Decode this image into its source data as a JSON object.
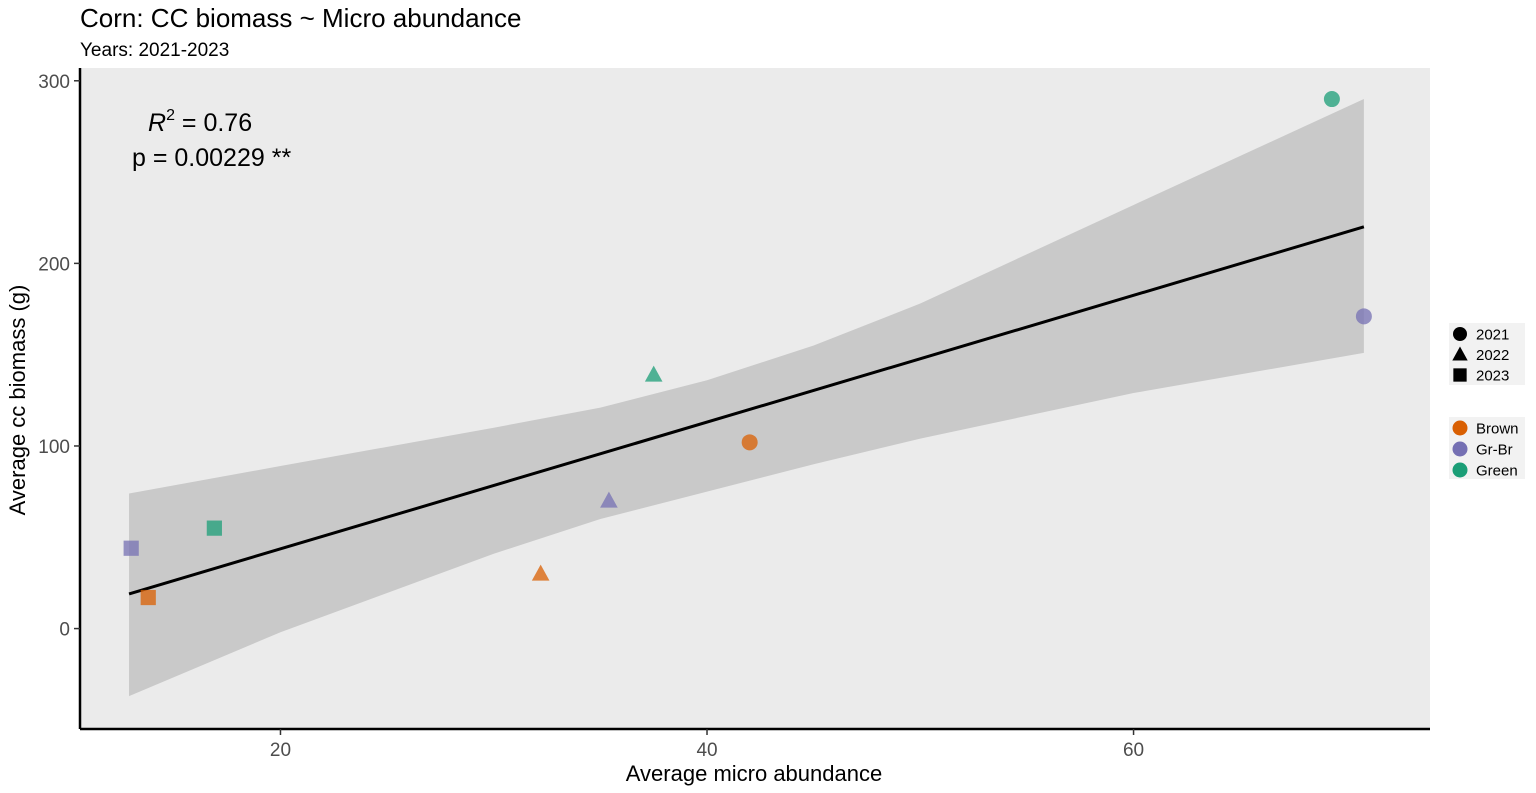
{
  "chart_data": {
    "type": "scatter",
    "title": "Corn: CC biomass ~ Micro abundance",
    "subtitle": "Years: 2021-2023",
    "xlabel": "Average micro abundance",
    "ylabel": "Average cc biomass (g)",
    "xlim": [
      10.6,
      73.9
    ],
    "ylim": [
      -55,
      307
    ],
    "xticks": [
      20,
      40,
      60
    ],
    "yticks": [
      0,
      100,
      200,
      300
    ],
    "grid": false,
    "annotation": {
      "r2_label": "R",
      "r2_superscript": "2",
      "r2_value": " = 0.76",
      "p_label": "p = 0.00229 **"
    },
    "points": [
      {
        "x": 13.0,
        "y": 44,
        "group": "Gr-Br",
        "year": "2023"
      },
      {
        "x": 13.8,
        "y": 17,
        "group": "Brown",
        "year": "2023"
      },
      {
        "x": 16.9,
        "y": 55,
        "group": "Green",
        "year": "2023"
      },
      {
        "x": 32.2,
        "y": 30,
        "group": "Brown",
        "year": "2022"
      },
      {
        "x": 35.4,
        "y": 70,
        "group": "Gr-Br",
        "year": "2022"
      },
      {
        "x": 37.5,
        "y": 139,
        "group": "Green",
        "year": "2022"
      },
      {
        "x": 42.0,
        "y": 102,
        "group": "Brown",
        "year": "2021"
      },
      {
        "x": 69.3,
        "y": 290,
        "group": "Green",
        "year": "2021"
      },
      {
        "x": 70.8,
        "y": 171,
        "group": "Gr-Br",
        "year": "2021"
      }
    ],
    "fit_line": {
      "x": [
        12.9,
        70.8
      ],
      "y": [
        19,
        220
      ]
    },
    "confidence_band": [
      {
        "x": 12.9,
        "lower": -37,
        "upper": 74
      },
      {
        "x": 20.0,
        "lower": -2,
        "upper": 89
      },
      {
        "x": 30.0,
        "lower": 41,
        "upper": 110
      },
      {
        "x": 35.0,
        "lower": 60,
        "upper": 121
      },
      {
        "x": 40.0,
        "lower": 75,
        "upper": 136
      },
      {
        "x": 45.0,
        "lower": 90,
        "upper": 155
      },
      {
        "x": 50.0,
        "lower": 104,
        "upper": 178
      },
      {
        "x": 60.0,
        "lower": 129,
        "upper": 232
      },
      {
        "x": 70.8,
        "lower": 151,
        "upper": 290
      }
    ],
    "legend_position": "right",
    "legend": {
      "shapes": [
        {
          "label": "2021",
          "shape": "circle"
        },
        {
          "label": "2022",
          "shape": "triangle"
        },
        {
          "label": "2023",
          "shape": "square"
        }
      ],
      "colors": [
        {
          "label": "Brown",
          "color": "#D95F02"
        },
        {
          "label": "Gr-Br",
          "color": "#7570B3"
        },
        {
          "label": "Green",
          "color": "#1B9E77"
        }
      ]
    },
    "colors": {
      "panel_background": "#EBEBEB",
      "confidence_band": "#C9C9C9",
      "fit_line": "#000000"
    }
  }
}
